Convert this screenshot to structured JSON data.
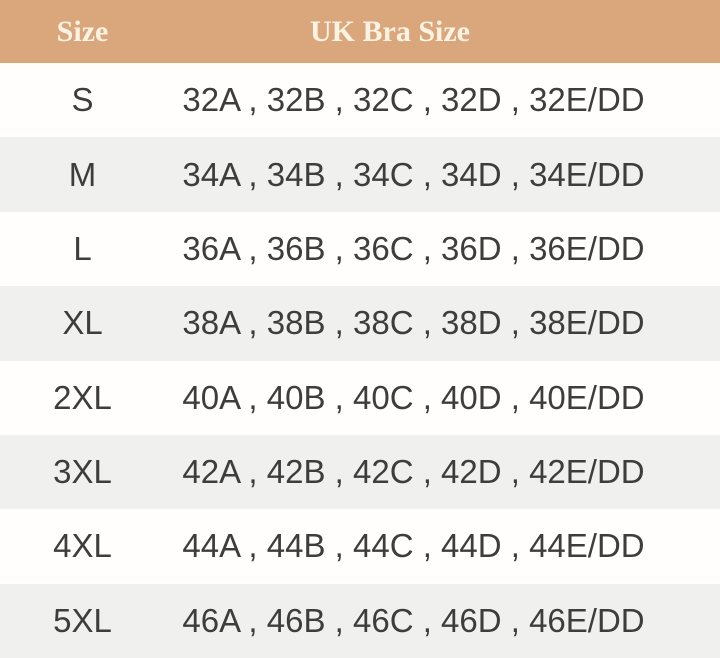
{
  "chart_data": {
    "type": "table",
    "columns": [
      "Size",
      "UK Bra Size"
    ],
    "rows": [
      {
        "size": "S",
        "uk_bra_size": "32A , 32B , 32C , 32D , 32E/DD"
      },
      {
        "size": "M",
        "uk_bra_size": "34A , 34B , 34C , 34D , 34E/DD"
      },
      {
        "size": "L",
        "uk_bra_size": "36A , 36B , 36C , 36D , 36E/DD"
      },
      {
        "size": "XL",
        "uk_bra_size": "38A , 38B , 38C , 38D , 38E/DD"
      },
      {
        "size": "2XL",
        "uk_bra_size": "40A , 40B , 40C , 40D , 40E/DD"
      },
      {
        "size": "3XL",
        "uk_bra_size": "42A , 42B , 42C , 42D , 42E/DD"
      },
      {
        "size": "4XL",
        "uk_bra_size": "44A , 44B , 44C , 44D , 44E/DD"
      },
      {
        "size": "5XL",
        "uk_bra_size": "46A , 46B , 46C , 46D , 46E/DD"
      }
    ]
  },
  "colors": {
    "header_bg": "#d9a77b",
    "header_text": "#faf3e4",
    "row_bg": "#fffefc",
    "row_alt_bg": "#f0f0ef",
    "cell_text": "#3d3d3d"
  }
}
